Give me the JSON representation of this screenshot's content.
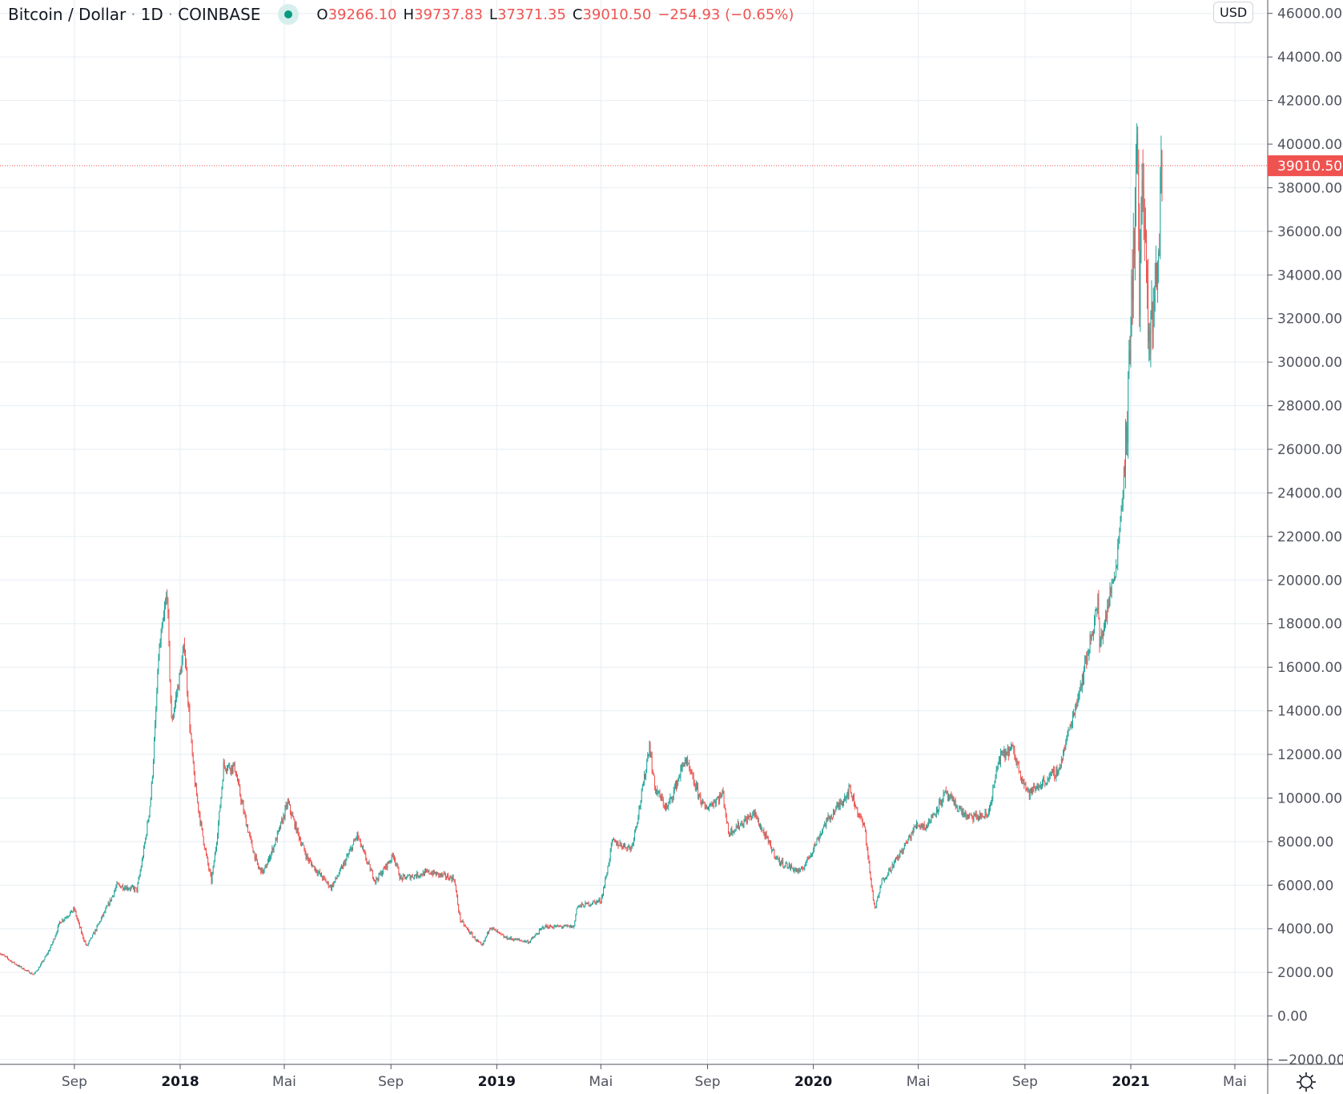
{
  "header": {
    "symbol": "Bitcoin / Dollar",
    "interval": "1D",
    "exchange": "COINBASE",
    "ohlc": {
      "o_label": "O",
      "o": "39266.10",
      "h_label": "H",
      "h": "39737.83",
      "l_label": "L",
      "l": "37371.35",
      "c_label": "C",
      "c": "39010.50",
      "change": "−254.93 (−0.65%)"
    }
  },
  "currency_button": "USD",
  "settings_icon": "sun-gear-icon",
  "colors": {
    "up": "#26a69a",
    "down": "#ef5350",
    "grid": "#e6eef2",
    "axis": "#50535e",
    "last_price": "#ef5350"
  },
  "chart_data": {
    "type": "candlestick",
    "ylim": [
      -2000,
      46000
    ],
    "yticks": [
      -2000,
      0,
      2000,
      4000,
      6000,
      8000,
      10000,
      12000,
      14000,
      16000,
      18000,
      20000,
      22000,
      24000,
      26000,
      28000,
      30000,
      32000,
      34000,
      36000,
      38000,
      40000,
      42000,
      44000,
      46000
    ],
    "xlim": [
      "2017-06-07",
      "2021-06-30"
    ],
    "xticks": [
      {
        "date": "2017-09-01",
        "label": "Sep"
      },
      {
        "date": "2018-01-01",
        "label": "2018",
        "bold": true
      },
      {
        "date": "2018-05-01",
        "label": "Mai"
      },
      {
        "date": "2018-09-01",
        "label": "Sep"
      },
      {
        "date": "2019-01-01",
        "label": "2019",
        "bold": true
      },
      {
        "date": "2019-05-01",
        "label": "Mai"
      },
      {
        "date": "2019-09-01",
        "label": "Sep"
      },
      {
        "date": "2020-01-01",
        "label": "2020",
        "bold": true
      },
      {
        "date": "2020-05-01",
        "label": "Mai"
      },
      {
        "date": "2020-09-01",
        "label": "Sep"
      },
      {
        "date": "2021-01-01",
        "label": "2021",
        "bold": true
      },
      {
        "date": "2021-05-01",
        "label": "Mai"
      }
    ],
    "grid": true,
    "last_price": 39010.5,
    "last_price_label": "39010.50",
    "last_candle": {
      "date": "2021-02-06",
      "open": 39266.1,
      "high": 39737.83,
      "low": 37371.35,
      "close": 39010.5
    },
    "approx_closes": [
      [
        "2017-06-07",
        2900
      ],
      [
        "2017-07-16",
        1900
      ],
      [
        "2017-08-05",
        3200
      ],
      [
        "2017-08-15",
        4300
      ],
      [
        "2017-09-01",
        4900
      ],
      [
        "2017-09-15",
        3200
      ],
      [
        "2017-10-01",
        4400
      ],
      [
        "2017-10-20",
        6000
      ],
      [
        "2017-11-12",
        5800
      ],
      [
        "2017-11-28",
        10000
      ],
      [
        "2017-12-07",
        16500
      ],
      [
        "2017-12-17",
        19500
      ],
      [
        "2017-12-22",
        13500
      ],
      [
        "2018-01-06",
        17000
      ],
      [
        "2018-01-17",
        11000
      ],
      [
        "2018-02-06",
        6200
      ],
      [
        "2018-02-20",
        11500
      ],
      [
        "2018-03-05",
        11400
      ],
      [
        "2018-04-01",
        6800
      ],
      [
        "2018-04-07",
        6600
      ],
      [
        "2018-05-05",
        9800
      ],
      [
        "2018-05-28",
        7200
      ],
      [
        "2018-06-24",
        5900
      ],
      [
        "2018-07-24",
        8300
      ],
      [
        "2018-08-14",
        6200
      ],
      [
        "2018-09-04",
        7400
      ],
      [
        "2018-09-12",
        6300
      ],
      [
        "2018-10-15",
        6600
      ],
      [
        "2018-11-13",
        6300
      ],
      [
        "2018-11-20",
        4400
      ],
      [
        "2018-12-15",
        3200
      ],
      [
        "2018-12-24",
        4100
      ],
      [
        "2019-01-10",
        3600
      ],
      [
        "2019-02-07",
        3400
      ],
      [
        "2019-02-24",
        4100
      ],
      [
        "2019-03-31",
        4100
      ],
      [
        "2019-04-03",
        5000
      ],
      [
        "2019-05-01",
        5300
      ],
      [
        "2019-05-14",
        8000
      ],
      [
        "2019-06-05",
        7700
      ],
      [
        "2019-06-26",
        12500
      ],
      [
        "2019-07-02",
        10500
      ],
      [
        "2019-07-16",
        9500
      ],
      [
        "2019-08-06",
        11800
      ],
      [
        "2019-08-29",
        9500
      ],
      [
        "2019-09-19",
        10200
      ],
      [
        "2019-09-25",
        8400
      ],
      [
        "2019-10-25",
        9300
      ],
      [
        "2019-11-22",
        7100
      ],
      [
        "2019-12-17",
        6600
      ],
      [
        "2020-01-14",
        8800
      ],
      [
        "2020-02-12",
        10400
      ],
      [
        "2020-03-01",
        8500
      ],
      [
        "2020-03-12",
        4900
      ],
      [
        "2020-03-20",
        6200
      ],
      [
        "2020-04-29",
        8800
      ],
      [
        "2020-05-10",
        8700
      ],
      [
        "2020-06-01",
        10200
      ],
      [
        "2020-06-27",
        9100
      ],
      [
        "2020-07-20",
        9200
      ],
      [
        "2020-08-02",
        11800
      ],
      [
        "2020-08-17",
        12300
      ],
      [
        "2020-09-05",
        10200
      ],
      [
        "2020-10-10",
        11300
      ],
      [
        "2020-10-21",
        13000
      ],
      [
        "2020-11-06",
        15500
      ],
      [
        "2020-11-24",
        19000
      ],
      [
        "2020-11-26",
        17000
      ],
      [
        "2020-12-16",
        21000
      ],
      [
        "2020-12-27",
        26500
      ],
      [
        "2021-01-08",
        40500
      ],
      [
        "2021-01-11",
        33000
      ],
      [
        "2021-01-14",
        39000
      ],
      [
        "2021-01-22",
        30500
      ],
      [
        "2021-01-29",
        34000
      ],
      [
        "2021-02-01",
        33500
      ],
      [
        "2021-02-05",
        39266.1
      ]
    ]
  }
}
